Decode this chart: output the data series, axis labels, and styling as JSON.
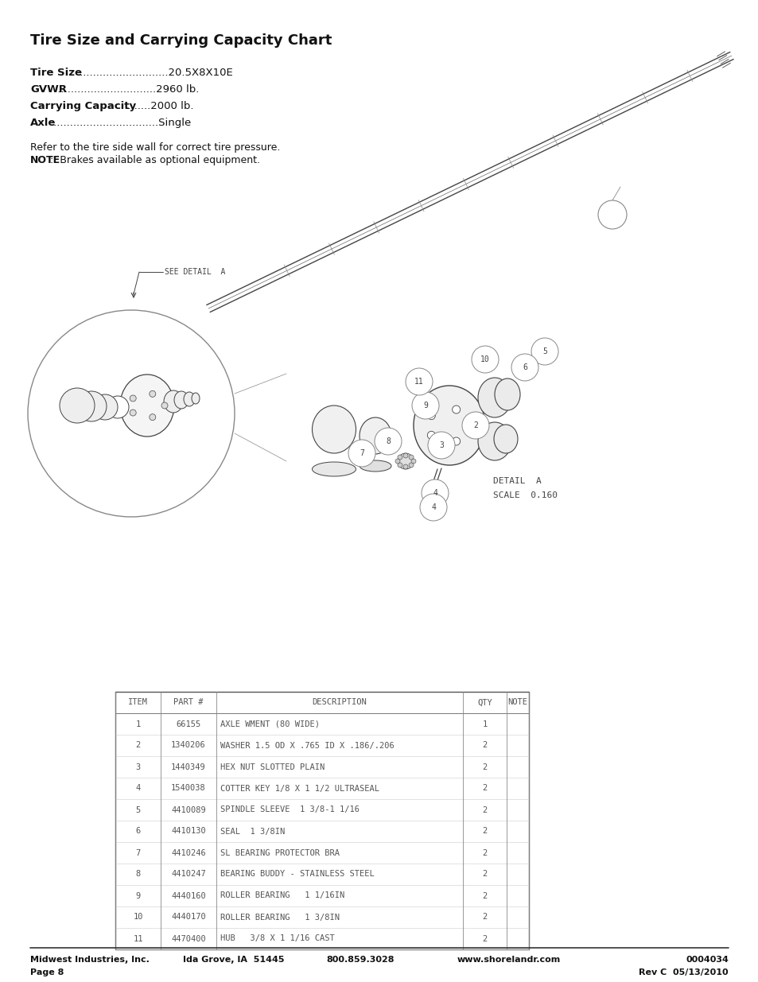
{
  "title": "Tire Size and Carrying Capacity Chart",
  "spec_lines": [
    {
      "bold": "Tire Size",
      "rest": "............................20.5X8X10E"
    },
    {
      "bold": "GVWR",
      "rest": " ...............................2960 lb."
    },
    {
      "bold": "Carrying Capacity",
      "rest": "..........2000 lb."
    },
    {
      "bold": "Axle",
      "rest": ".................................Single"
    }
  ],
  "note_line1": "Refer to the tire side wall for correct tire pressure.",
  "note_bold": "NOTE",
  "note_rest": ":  Brakes available as optional equipment.",
  "table_headers": [
    "ITEM",
    "PART #",
    "DESCRIPTION",
    "QTY",
    "NOTE"
  ],
  "table_rows": [
    [
      "1",
      "66155",
      "AXLE WMENT (80 WIDE)",
      "1",
      ""
    ],
    [
      "2",
      "1340206",
      "WASHER 1.5 OD X .765 ID X .186/.206",
      "2",
      ""
    ],
    [
      "3",
      "1440349",
      "HEX NUT SLOTTED PLAIN",
      "2",
      ""
    ],
    [
      "4",
      "1540038",
      "COTTER KEY 1/8 X 1 1/2 ULTRASEAL",
      "2",
      ""
    ],
    [
      "5",
      "4410089",
      "SPINDLE SLEEVE  1 3/8-1 1/16",
      "2",
      ""
    ],
    [
      "6",
      "4410130",
      "SEAL  1 3/8IN",
      "2",
      ""
    ],
    [
      "7",
      "4410246",
      "SL BEARING PROTECTOR BRA",
      "2",
      ""
    ],
    [
      "8",
      "4410247",
      "BEARING BUDDY - STAINLESS STEEL",
      "2",
      ""
    ],
    [
      "9",
      "4440160",
      "ROLLER BEARING   1 1/16IN",
      "2",
      ""
    ],
    [
      "10",
      "4440170",
      "ROLLER BEARING   1 3/8IN",
      "2",
      ""
    ],
    [
      "11",
      "4470400",
      "HUB   3/8 X 1 1/16 CAST",
      "2",
      ""
    ]
  ],
  "footer_left1": "Midwest Industries, Inc.",
  "footer_left2": "Page 8",
  "footer_c1": "Ida Grove, IA  51445",
  "footer_c2": "800.859.3028",
  "footer_c3": "www.shorelandr.com",
  "footer_right1": "0004034",
  "footer_right2": "Rev C  05/13/2010",
  "bg_color": "#ffffff",
  "text_color": "#111111",
  "gray": "#666666",
  "light_gray": "#aaaaaa",
  "detail_label": "DETAIL  A",
  "scale_label": "SCALE  0.160",
  "see_detail_label": "SEE DETAIL  A"
}
